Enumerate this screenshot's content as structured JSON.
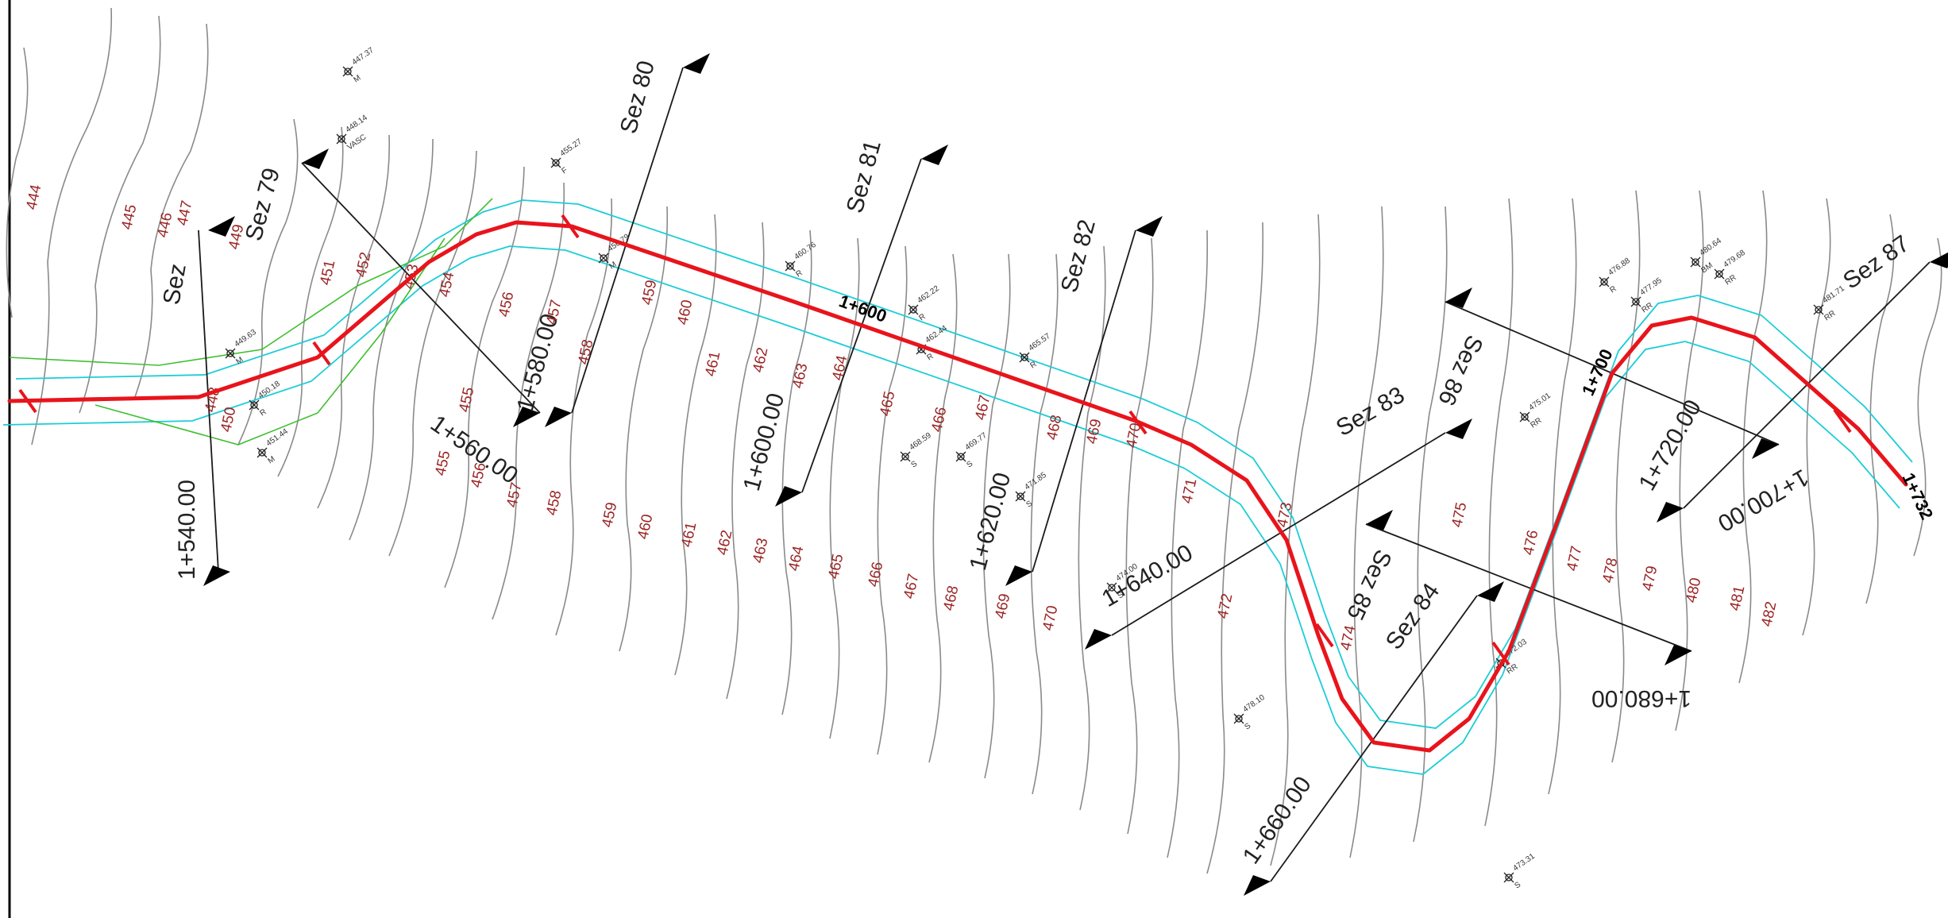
{
  "sections": [
    {
      "label": "Sez 79",
      "station": "1+560.00"
    },
    {
      "label": "Sez 80",
      "station": "1+580.00"
    },
    {
      "label": "Sez 81",
      "station": "1+600.00"
    },
    {
      "label": "Sez 82",
      "station": "1+620.00"
    },
    {
      "label": "Sez 83",
      "station": "1+640.00"
    },
    {
      "label": "Sez 84",
      "station": "1+660.00"
    },
    {
      "label": "Sez 85",
      "station": "1+680.00"
    },
    {
      "label": "Sez 86",
      "station": "1+700.00"
    },
    {
      "label": "Sez 87",
      "station": "1+720.00"
    }
  ],
  "left_section": {
    "label": "Sez",
    "station": "1+540.00"
  },
  "axis_chainages": [
    "1+600",
    "1+700",
    "1+732"
  ],
  "contour_labels": [
    "444",
    "445",
    "446",
    "447",
    "448",
    "449",
    "450",
    "451",
    "452",
    "453",
    "454",
    "455",
    "456",
    "457",
    "458",
    "459",
    "460",
    "461",
    "462",
    "463",
    "464",
    "465",
    "466",
    "467",
    "468",
    "469",
    "470",
    "471",
    "472",
    "473",
    "474",
    "475",
    "476",
    "477",
    "478",
    "479",
    "480",
    "481",
    "482"
  ],
  "survey_points": [
    {
      "value": "447.37",
      "code": "M"
    },
    {
      "value": "448.14",
      "code": "VASC"
    },
    {
      "value": "455.27",
      "code": "F"
    },
    {
      "value": "456.79",
      "code": "M"
    },
    {
      "value": "460.76",
      "code": "R"
    },
    {
      "value": "462.22",
      "code": "R"
    },
    {
      "value": "462.44",
      "code": "R"
    },
    {
      "value": "465.57",
      "code": "R"
    },
    {
      "value": "468.59",
      "code": "S"
    },
    {
      "value": "469.77",
      "code": "S"
    },
    {
      "value": "471.85",
      "code": "S"
    },
    {
      "value": "474.00",
      "code": "S"
    },
    {
      "value": "475.01",
      "code": "RR"
    },
    {
      "value": "476.88",
      "code": "R"
    },
    {
      "value": "477.95",
      "code": "RR"
    },
    {
      "value": "480.64",
      "code": "BM"
    },
    {
      "value": "479.68",
      "code": "RR"
    },
    {
      "value": "481.71",
      "code": "RR"
    },
    {
      "value": "478.10",
      "code": "S"
    },
    {
      "value": "472.03",
      "code": "RR"
    },
    {
      "value": "473.31",
      "code": "S"
    },
    {
      "value": "449.63",
      "code": "M"
    },
    {
      "value": "450.18",
      "code": "R"
    },
    {
      "value": "451.44",
      "code": "M"
    }
  ]
}
